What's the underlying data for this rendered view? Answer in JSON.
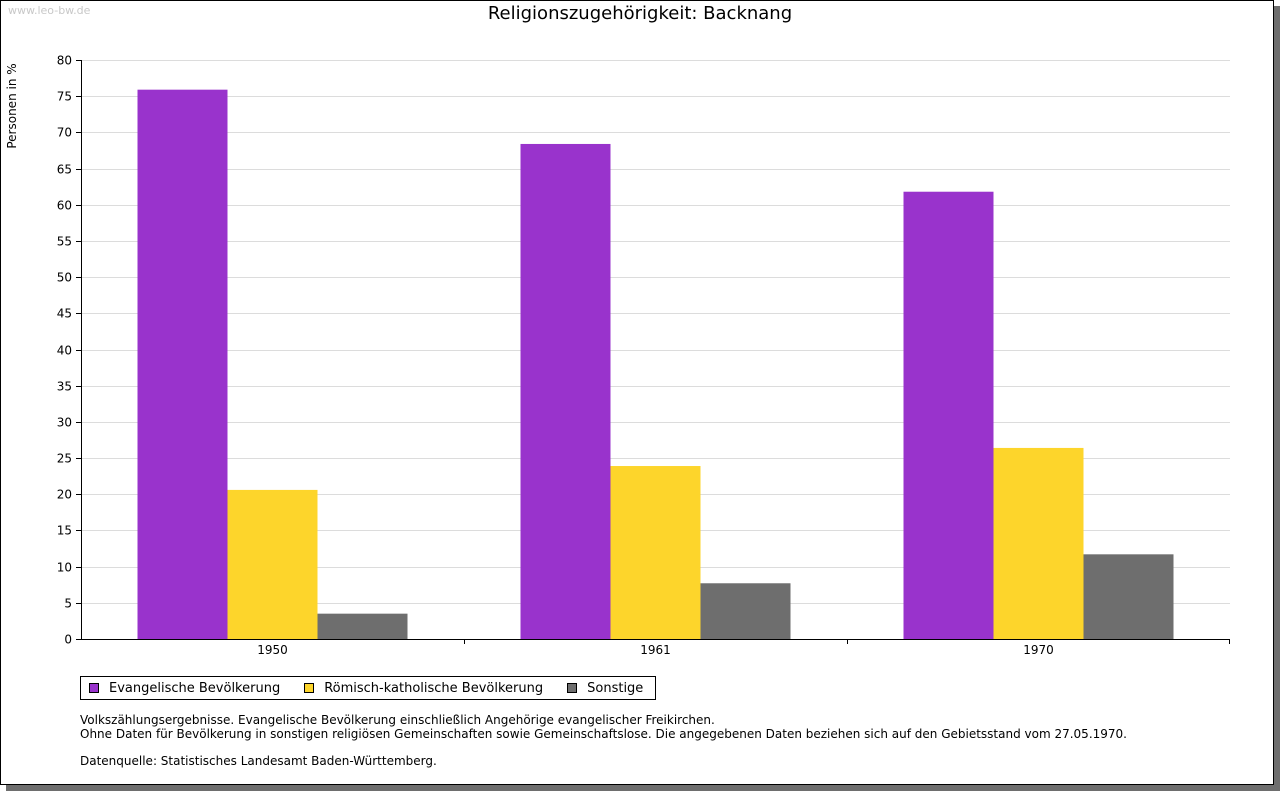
{
  "watermark": "www.leo-bw.de",
  "chart_data": {
    "type": "bar",
    "title": "Religionszugehörigkeit: Backnang",
    "xlabel": "",
    "ylabel": "Personen in %",
    "categories": [
      "1950",
      "1961",
      "1970"
    ],
    "series": [
      {
        "name": "Evangelische Bevölkerung",
        "color": "#9933cc",
        "values": [
          75.9,
          68.4,
          61.8
        ]
      },
      {
        "name": "Römisch-katholische Bevölkerung",
        "color": "#fdd52b",
        "values": [
          20.6,
          23.9,
          26.4
        ]
      },
      {
        "name": "Sonstige",
        "color": "#6e6e6e",
        "values": [
          3.5,
          7.7,
          11.7
        ]
      }
    ],
    "ylim": [
      0,
      80
    ],
    "yticks": [
      "0",
      "5",
      "10",
      "15",
      "20",
      "25",
      "30",
      "35",
      "40",
      "45",
      "50",
      "55",
      "60",
      "65",
      "70",
      "75",
      "80"
    ],
    "grid": true,
    "legend_position": "bottom-left"
  },
  "notes": {
    "line1": "Volkszählungsergebnisse. Evangelische Bevölkerung einschließlich Angehörige evangelischer Freikirchen.",
    "line2": "Ohne Daten für Bevölkerung in sonstigen religiösen Gemeinschaften sowie Gemeinschaftslose. Die angegebenen Daten beziehen sich auf den Gebietsstand vom 27.05.1970.",
    "source": "Datenquelle: Statistisches Landesamt Baden-Württemberg."
  }
}
